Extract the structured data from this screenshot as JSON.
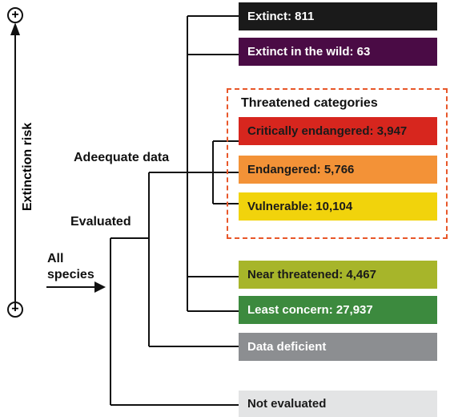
{
  "axis": {
    "label": "Extinction risk",
    "plus_symbol": "+",
    "minus_symbol": "−"
  },
  "tree_labels": {
    "all_species": [
      "All",
      "species"
    ],
    "evaluated": "Evaluated",
    "adequate_data": "Adeequate data"
  },
  "threatened_group": {
    "title": "Threatened categories",
    "border_color": "#e8572a"
  },
  "categories": [
    {
      "key": "extinct",
      "label": "Extinct: 811",
      "value": 811,
      "bg": "#1a1a1a",
      "fg": "#ffffff"
    },
    {
      "key": "extinct_wild",
      "label": "Extinct in the wild: 63",
      "value": 63,
      "bg": "#4a0b45",
      "fg": "#ffffff"
    },
    {
      "key": "critically_endangered",
      "label": "Critically endangered: 3,947",
      "value": 3947,
      "bg": "#d7261e",
      "fg": "#1a1a1a"
    },
    {
      "key": "endangered",
      "label": "Endangered: 5,766",
      "value": 5766,
      "bg": "#f39237",
      "fg": "#1a1a1a"
    },
    {
      "key": "vulnerable",
      "label": "Vulnerable: 10,104",
      "value": 10104,
      "bg": "#f1d30c",
      "fg": "#1a1a1a"
    },
    {
      "key": "near_threatened",
      "label": "Near threatened: 4,467",
      "value": 4467,
      "bg": "#a7b52a",
      "fg": "#1a1a1a"
    },
    {
      "key": "least_concern",
      "label": "Least concern: 27,937",
      "value": 27937,
      "bg": "#3c8a3e",
      "fg": "#ffffff"
    },
    {
      "key": "data_deficient",
      "label": "Data deficient",
      "bg": "#8c8e91",
      "fg": "#ffffff"
    },
    {
      "key": "not_evaluated",
      "label": "Not evaluated",
      "bg": "#e3e4e5",
      "fg": "#1a1a1a"
    }
  ]
}
